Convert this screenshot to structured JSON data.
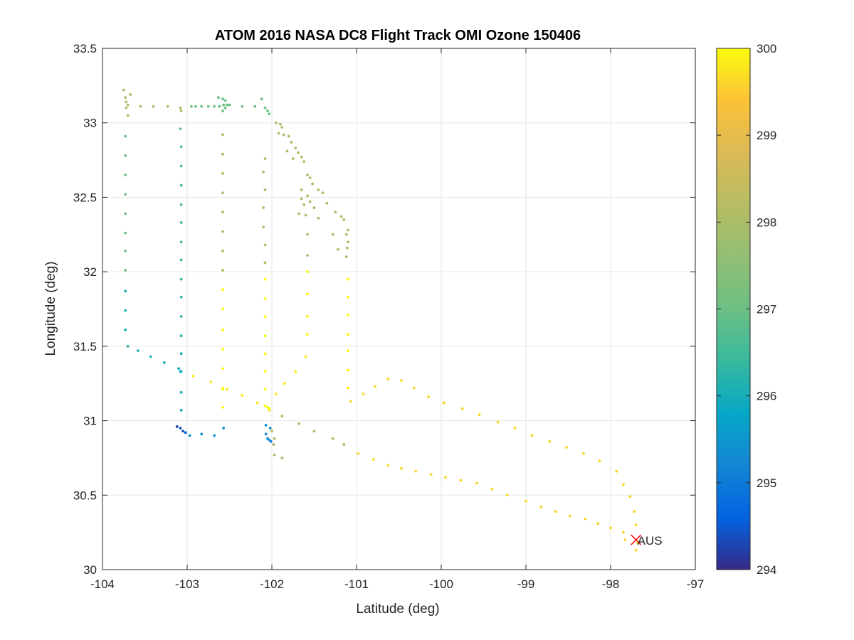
{
  "chart_data": {
    "type": "scatter",
    "title": "ATOM 2016 NASA DC8 Flight Track OMI Ozone 150406",
    "xlabel": "Latitude (deg)",
    "ylabel": "Longitude (deg)",
    "xlim": [
      -104,
      -97
    ],
    "ylim": [
      30,
      33.5
    ],
    "xticks": [
      -104,
      -103,
      -102,
      -101,
      -100,
      -99,
      -98,
      -97
    ],
    "xtick_labels": [
      "-104",
      "-103",
      "-102",
      "-101",
      "-100",
      "-99",
      "-98",
      "-97"
    ],
    "yticks": [
      30,
      30.5,
      31,
      31.5,
      32,
      32.5,
      33,
      33.5
    ],
    "ytick_labels": [
      "30",
      "30.5",
      "31",
      "31.5",
      "32",
      "32.5",
      "33",
      "33.5"
    ],
    "grid": true,
    "colormap": "parula",
    "colorbar": {
      "range": [
        294,
        300
      ],
      "ticks": [
        294,
        295,
        296,
        297,
        298,
        299,
        300
      ],
      "tick_labels": [
        "294",
        "295",
        "296",
        "297",
        "298",
        "299",
        "300"
      ]
    },
    "marker": {
      "label": "AUS",
      "x": -97.7,
      "y": 30.2,
      "color": "#ff0000"
    },
    "points": [
      [
        -103.75,
        33.22,
        298
      ],
      [
        -103.73,
        33.17,
        298
      ],
      [
        -103.72,
        33.14,
        298
      ],
      [
        -103.7,
        33.12,
        298
      ],
      [
        -103.67,
        33.19,
        298
      ],
      [
        -103.72,
        33.1,
        298
      ],
      [
        -103.7,
        33.05,
        297.9
      ],
      [
        -103.55,
        33.11,
        298
      ],
      [
        -103.4,
        33.11,
        298
      ],
      [
        -103.23,
        33.11,
        298
      ],
      [
        -103.08,
        33.1,
        298
      ],
      [
        -103.07,
        33.08,
        298
      ],
      [
        -102.95,
        33.11,
        297.2
      ],
      [
        -102.9,
        33.11,
        297.1
      ],
      [
        -102.83,
        33.11,
        297.1
      ],
      [
        -102.75,
        33.11,
        297.1
      ],
      [
        -102.68,
        33.11,
        297
      ],
      [
        -102.62,
        33.11,
        297
      ],
      [
        -102.63,
        33.17,
        297
      ],
      [
        -102.58,
        33.16,
        297
      ],
      [
        -102.55,
        33.15,
        297
      ],
      [
        -102.57,
        33.12,
        297
      ],
      [
        -102.55,
        33.1,
        297
      ],
      [
        -102.58,
        33.08,
        297
      ],
      [
        -102.53,
        33.12,
        297
      ],
      [
        -102.5,
        33.12,
        297
      ],
      [
        -102.35,
        33.11,
        297
      ],
      [
        -102.2,
        33.11,
        297
      ],
      [
        -102.12,
        33.16,
        297
      ],
      [
        -102.08,
        33.1,
        297
      ],
      [
        -102.05,
        33.08,
        297
      ],
      [
        -102.03,
        33.06,
        297
      ],
      [
        -101.95,
        33.0,
        298
      ],
      [
        -101.9,
        32.99,
        298
      ],
      [
        -101.86,
        32.92,
        298
      ],
      [
        -101.8,
        32.91,
        298
      ],
      [
        -101.77,
        32.87,
        298
      ],
      [
        -101.72,
        32.83,
        298
      ],
      [
        -101.69,
        32.8,
        298
      ],
      [
        -101.75,
        32.76,
        298
      ],
      [
        -101.65,
        32.77,
        298
      ],
      [
        -101.62,
        32.74,
        298
      ],
      [
        -101.58,
        32.65,
        298
      ],
      [
        -101.55,
        32.63,
        298
      ],
      [
        -101.52,
        32.59,
        298
      ],
      [
        -101.45,
        32.55,
        298
      ],
      [
        -101.4,
        32.53,
        298
      ],
      [
        -101.35,
        32.46,
        298
      ],
      [
        -101.25,
        32.4,
        298
      ],
      [
        -101.18,
        32.37,
        298
      ],
      [
        -101.15,
        32.35,
        298
      ],
      [
        -101.1,
        32.28,
        298
      ],
      [
        -101.12,
        32.25,
        298
      ],
      [
        -101.1,
        32.2,
        298
      ],
      [
        -101.11,
        32.16,
        298
      ],
      [
        -101.12,
        32.1,
        298
      ],
      [
        -101.28,
        32.25,
        298
      ],
      [
        -101.22,
        32.15,
        298
      ],
      [
        -101.45,
        32.36,
        298
      ],
      [
        -101.58,
        32.25,
        298
      ],
      [
        -101.58,
        32.11,
        298
      ],
      [
        -101.6,
        32.38,
        298
      ],
      [
        -101.62,
        32.45,
        298
      ],
      [
        -101.65,
        32.49,
        298
      ],
      [
        -101.65,
        32.55,
        298
      ],
      [
        -101.58,
        32.51,
        298
      ],
      [
        -101.55,
        32.47,
        298
      ],
      [
        -101.5,
        32.43,
        298
      ],
      [
        -101.68,
        32.39,
        298
      ],
      [
        -101.82,
        32.81,
        298
      ],
      [
        -101.88,
        32.97,
        298
      ],
      [
        -101.92,
        32.93,
        298
      ],
      [
        -103.73,
        32.91,
        297
      ],
      [
        -103.73,
        32.78,
        297
      ],
      [
        -103.73,
        32.65,
        297
      ],
      [
        -103.73,
        32.52,
        297
      ],
      [
        -103.73,
        32.39,
        297
      ],
      [
        -103.73,
        32.26,
        297
      ],
      [
        -103.73,
        32.14,
        297
      ],
      [
        -103.73,
        32.01,
        297
      ],
      [
        -103.73,
        31.87,
        296
      ],
      [
        -103.73,
        31.74,
        296.1
      ],
      [
        -103.73,
        31.61,
        296.1
      ],
      [
        -103.7,
        31.5,
        296.2
      ],
      [
        -103.58,
        31.47,
        296.2
      ],
      [
        -103.43,
        31.43,
        296.1
      ],
      [
        -103.27,
        31.39,
        296
      ],
      [
        -103.1,
        31.35,
        295.9
      ],
      [
        -103.08,
        31.33,
        295.9
      ],
      [
        -103.08,
        32.96,
        296.8
      ],
      [
        -103.07,
        32.84,
        296.8
      ],
      [
        -103.07,
        32.71,
        296.7
      ],
      [
        -103.07,
        32.58,
        296.7
      ],
      [
        -103.07,
        32.45,
        296.7
      ],
      [
        -103.07,
        32.33,
        296.6
      ],
      [
        -103.07,
        32.2,
        296.6
      ],
      [
        -103.07,
        32.08,
        296.5
      ],
      [
        -103.07,
        31.95,
        296.4
      ],
      [
        -103.07,
        31.83,
        296.3
      ],
      [
        -103.07,
        31.7,
        296.3
      ],
      [
        -103.07,
        31.57,
        296.2
      ],
      [
        -103.07,
        31.45,
        296.1
      ],
      [
        -103.07,
        31.33,
        296
      ],
      [
        -103.07,
        31.19,
        296
      ],
      [
        -103.07,
        31.07,
        295.9
      ],
      [
        -103.12,
        30.96,
        294.3
      ],
      [
        -103.08,
        30.95,
        294.3
      ],
      [
        -103.05,
        30.93,
        294.4
      ],
      [
        -103.02,
        30.92,
        294.6
      ],
      [
        -102.97,
        30.9,
        295.4
      ],
      [
        -102.83,
        30.91,
        295.4
      ],
      [
        -102.68,
        30.9,
        295.4
      ],
      [
        -102.57,
        30.95,
        295.4
      ],
      [
        -102.07,
        30.97,
        295.3
      ],
      [
        -102.02,
        30.95,
        295.3
      ],
      [
        -102.07,
        30.91,
        295.3
      ],
      [
        -102.05,
        30.88,
        295.3
      ],
      [
        -102.03,
        30.87,
        295.2
      ],
      [
        -102.01,
        30.86,
        295.2
      ],
      [
        -102.58,
        32.92,
        297.9
      ],
      [
        -102.58,
        32.79,
        298
      ],
      [
        -102.58,
        32.66,
        298
      ],
      [
        -102.58,
        32.53,
        298
      ],
      [
        -102.58,
        32.4,
        298
      ],
      [
        -102.58,
        32.27,
        298
      ],
      [
        -102.58,
        32.14,
        298
      ],
      [
        -102.58,
        32.01,
        298
      ],
      [
        -102.58,
        31.88,
        300
      ],
      [
        -102.58,
        31.75,
        300
      ],
      [
        -102.58,
        31.61,
        300
      ],
      [
        -102.58,
        31.48,
        300
      ],
      [
        -102.58,
        31.35,
        300
      ],
      [
        -102.58,
        31.22,
        300
      ],
      [
        -102.58,
        31.21,
        300
      ],
      [
        -102.58,
        31.09,
        300
      ],
      [
        -102.1,
        32.67,
        298
      ],
      [
        -102.08,
        32.55,
        298
      ],
      [
        -102.1,
        32.43,
        298
      ],
      [
        -102.1,
        32.3,
        298
      ],
      [
        -102.08,
        32.18,
        298
      ],
      [
        -102.08,
        32.06,
        298
      ],
      [
        -102.08,
        31.95,
        300
      ],
      [
        -102.08,
        31.82,
        300
      ],
      [
        -102.08,
        31.7,
        300
      ],
      [
        -102.08,
        31.57,
        300
      ],
      [
        -102.08,
        31.45,
        300
      ],
      [
        -102.08,
        31.33,
        300
      ],
      [
        -102.08,
        31.21,
        300
      ],
      [
        -102.08,
        31.1,
        300
      ],
      [
        -102.03,
        31.08,
        300
      ],
      [
        -102.05,
        31.09,
        300
      ],
      [
        -102.08,
        32.76,
        298
      ],
      [
        -101.58,
        32.0,
        300
      ],
      [
        -101.58,
        31.85,
        300
      ],
      [
        -101.58,
        31.7,
        300
      ],
      [
        -101.58,
        31.58,
        300
      ],
      [
        -101.6,
        31.43,
        299.8
      ],
      [
        -101.72,
        31.33,
        299.8
      ],
      [
        -101.85,
        31.25,
        299.8
      ],
      [
        -101.95,
        31.18,
        299.8
      ],
      [
        -102.0,
        30.93,
        298
      ],
      [
        -101.97,
        30.88,
        298
      ],
      [
        -101.98,
        30.84,
        298
      ],
      [
        -101.97,
        30.77,
        298
      ],
      [
        -101.88,
        30.75,
        298
      ],
      [
        -101.88,
        31.03,
        298
      ],
      [
        -101.1,
        31.95,
        300
      ],
      [
        -101.1,
        31.83,
        300
      ],
      [
        -101.1,
        31.71,
        300
      ],
      [
        -101.1,
        31.58,
        300
      ],
      [
        -101.1,
        31.47,
        300
      ],
      [
        -101.1,
        31.34,
        300
      ],
      [
        -101.1,
        31.22,
        300
      ],
      [
        -101.07,
        31.13,
        299.6
      ],
      [
        -102.93,
        31.3,
        299.8
      ],
      [
        -102.72,
        31.26,
        299.8
      ],
      [
        -102.53,
        31.21,
        299.8
      ],
      [
        -102.35,
        31.17,
        299.8
      ],
      [
        -102.17,
        31.12,
        299.8
      ],
      [
        -102.03,
        31.07,
        299.8
      ],
      [
        -101.68,
        30.98,
        298
      ],
      [
        -101.5,
        30.93,
        298
      ],
      [
        -101.28,
        30.88,
        298
      ],
      [
        -101.15,
        30.84,
        298
      ],
      [
        -100.92,
        31.18,
        299.6
      ],
      [
        -100.78,
        31.23,
        299.6
      ],
      [
        -100.63,
        31.28,
        299.6
      ],
      [
        -100.47,
        31.27,
        299.6
      ],
      [
        -100.32,
        31.22,
        299.6
      ],
      [
        -100.15,
        31.16,
        299.6
      ],
      [
        -99.97,
        31.12,
        299.6
      ],
      [
        -99.75,
        31.08,
        299.6
      ],
      [
        -99.55,
        31.04,
        299.6
      ],
      [
        -99.33,
        30.99,
        299.6
      ],
      [
        -99.13,
        30.95,
        299.6
      ],
      [
        -98.93,
        30.9,
        299.6
      ],
      [
        -98.72,
        30.86,
        299.6
      ],
      [
        -98.52,
        30.82,
        299.6
      ],
      [
        -98.32,
        30.78,
        299.6
      ],
      [
        -98.13,
        30.73,
        299.6
      ],
      [
        -97.93,
        30.66,
        299.6
      ],
      [
        -97.85,
        30.57,
        299.6
      ],
      [
        -97.77,
        30.49,
        299.6
      ],
      [
        -97.72,
        30.39,
        299.6
      ],
      [
        -97.7,
        30.3,
        299.6
      ],
      [
        -97.68,
        30.18,
        299.6
      ],
      [
        -97.7,
        30.13,
        299.6
      ],
      [
        -100.98,
        30.78,
        299.6
      ],
      [
        -100.8,
        30.74,
        299.6
      ],
      [
        -100.63,
        30.7,
        299.6
      ],
      [
        -100.47,
        30.68,
        299.6
      ],
      [
        -100.3,
        30.66,
        299.6
      ],
      [
        -100.12,
        30.64,
        299.6
      ],
      [
        -99.95,
        30.62,
        299.6
      ],
      [
        -99.77,
        30.6,
        299.6
      ],
      [
        -99.58,
        30.58,
        299.6
      ],
      [
        -99.4,
        30.54,
        299.6
      ],
      [
        -99.22,
        30.5,
        299.6
      ],
      [
        -99.0,
        30.46,
        299.6
      ],
      [
        -98.82,
        30.42,
        299.6
      ],
      [
        -98.65,
        30.39,
        299.6
      ],
      [
        -98.48,
        30.36,
        299.6
      ],
      [
        -98.3,
        30.34,
        299.6
      ],
      [
        -98.15,
        30.31,
        299.6
      ],
      [
        -98.0,
        30.28,
        299.6
      ],
      [
        -97.85,
        30.25,
        299.6
      ],
      [
        -97.83,
        30.2,
        299.6
      ]
    ]
  }
}
